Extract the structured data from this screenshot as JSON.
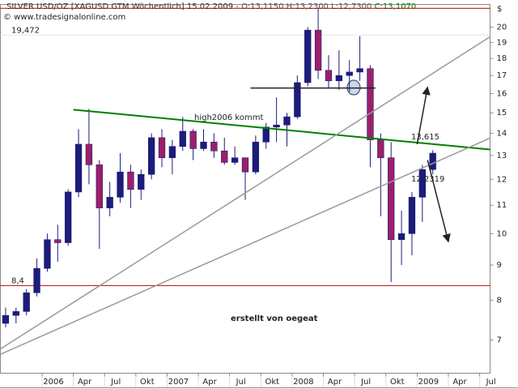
{
  "chart_data": {
    "type": "candlestick",
    "header": [
      {
        "text": "SILVER USD/OZ [XAGUSD GTM  Wöchentlich] 15.02.2009 - ",
        "color": "#333333"
      },
      {
        "text": "O:13,1150 H:13,2300 L:12,7300 ",
        "color": "#555555"
      },
      {
        "text": "C:13,1070",
        "color": "#008000"
      }
    ],
    "copyright": "© www.tradesignalonline.com",
    "y_unit": "$",
    "log_y": true,
    "up_color": "#1c1c7a",
    "down_color": "#9c1f6a",
    "x": [
      "2005-09",
      "2005-10",
      "2005-11",
      "2005-12",
      "2006-01",
      "2006-02",
      "2006-03",
      "2006-04",
      "2006-05",
      "2006-06",
      "2006-07",
      "2006-08",
      "2006-09",
      "2006-10",
      "2006-11",
      "2006-12",
      "2007-01",
      "2007-02",
      "2007-03",
      "2007-04",
      "2007-05",
      "2007-06",
      "2007-07",
      "2007-08",
      "2007-09",
      "2007-10",
      "2007-11",
      "2007-12",
      "2008-01",
      "2008-02",
      "2008-03",
      "2008-04",
      "2008-05",
      "2008-06",
      "2008-07",
      "2008-08",
      "2008-09",
      "2008-10",
      "2008-11",
      "2008-12",
      "2009-01",
      "2009-02"
    ],
    "open": [
      7.4,
      7.6,
      7.7,
      8.2,
      8.9,
      9.8,
      9.7,
      11.5,
      13.5,
      12.6,
      10.9,
      11.3,
      12.3,
      11.6,
      12.2,
      13.8,
      12.9,
      13.4,
      14.1,
      13.3,
      13.6,
      13.2,
      12.7,
      12.9,
      12.3,
      13.6,
      14.3,
      14.4,
      14.8,
      16.6,
      19.8,
      17.3,
      16.7,
      17.0,
      17.2,
      17.4,
      13.7,
      12.9,
      9.8,
      10.0,
      11.3,
      12.4
    ],
    "high": [
      7.8,
      7.8,
      8.3,
      9.2,
      10.0,
      10.3,
      11.6,
      14.2,
      15.2,
      12.8,
      11.9,
      13.1,
      12.6,
      12.4,
      14.0,
      14.2,
      13.7,
      14.8,
      14.2,
      14.2,
      14.0,
      13.8,
      13.4,
      12.9,
      13.9,
      14.5,
      15.8,
      15.0,
      17.0,
      20.0,
      21.3,
      18.2,
      18.5,
      17.9,
      19.4,
      17.6,
      14.0,
      13.6,
      10.8,
      11.5,
      12.6,
      13.23
    ],
    "low": [
      7.3,
      7.4,
      7.6,
      8.1,
      8.8,
      9.1,
      9.6,
      11.3,
      11.8,
      9.5,
      10.6,
      11.1,
      10.9,
      11.2,
      12.0,
      12.5,
      12.2,
      13.2,
      12.8,
      13.2,
      12.9,
      12.6,
      12.6,
      11.2,
      12.2,
      13.3,
      13.6,
      13.4,
      14.7,
      16.4,
      16.8,
      16.3,
      16.2,
      16.1,
      16.7,
      12.5,
      10.6,
      8.5,
      9.0,
      9.3,
      10.4,
      12.2
    ],
    "close": [
      7.6,
      7.7,
      8.2,
      8.9,
      9.8,
      9.7,
      11.5,
      13.5,
      12.6,
      10.9,
      11.3,
      12.3,
      11.6,
      12.2,
      13.8,
      12.9,
      13.4,
      14.1,
      13.3,
      13.6,
      13.2,
      12.7,
      12.9,
      12.3,
      13.6,
      14.3,
      14.4,
      14.8,
      16.6,
      19.8,
      17.3,
      16.7,
      17.0,
      17.2,
      17.4,
      13.7,
      12.9,
      9.8,
      10.0,
      11.3,
      12.4,
      13.1
    ],
    "xlim": [
      "2005-09",
      "2009-08"
    ],
    "xticks": [
      {
        "value": "2006-01",
        "label": "2006"
      },
      {
        "value": "2006-04",
        "label": "Apr"
      },
      {
        "value": "2006-07",
        "label": "Jul"
      },
      {
        "value": "2006-10",
        "label": "Okt"
      },
      {
        "value": "2007-01",
        "label": "2007"
      },
      {
        "value": "2007-04",
        "label": "Apr"
      },
      {
        "value": "2007-07",
        "label": "Jul"
      },
      {
        "value": "2007-10",
        "label": "Okt"
      },
      {
        "value": "2008-01",
        "label": "2008"
      },
      {
        "value": "2008-04",
        "label": "Apr"
      },
      {
        "value": "2008-07",
        "label": "Jul"
      },
      {
        "value": "2008-10",
        "label": "Okt"
      },
      {
        "value": "2009-01",
        "label": "2009"
      },
      {
        "value": "2009-04",
        "label": "Apr"
      },
      {
        "value": "2009-07",
        "label": "Jul"
      }
    ],
    "ylim": [
      6.26,
      21.58
    ],
    "yticks": [
      7,
      8,
      9,
      10,
      11,
      12,
      13,
      14,
      15,
      16,
      17,
      18,
      19,
      20
    ],
    "hlines": [
      {
        "value": 8.4,
        "label": "8,4",
        "color": "#c00000"
      },
      {
        "value": 19.472,
        "label": "19,472",
        "color": "#e6e6e6"
      },
      {
        "value": 21.3,
        "color": "#c00000"
      }
    ],
    "lines": [
      {
        "color": "#008000",
        "x": [
          "2006-04",
          "2009-08"
        ],
        "y": [
          15.16,
          13.26
        ]
      },
      {
        "color": "#999999",
        "x": [
          "2005-09",
          "2009-08"
        ],
        "y": [
          6.79,
          19.36
        ]
      },
      {
        "color": "#999999",
        "x": [
          "2005-09",
          "2009-08"
        ],
        "y": [
          6.67,
          13.78
        ]
      },
      {
        "color": "#222222",
        "x": [
          "2007-09",
          "2008-09"
        ],
        "y": [
          16.3,
          16.3
        ]
      },
      {
        "color": "#222222",
        "x": [
          "2009-01",
          "2009-02"
        ],
        "y": [
          13.5,
          16.35
        ],
        "arrow": true
      },
      {
        "color": "#222222",
        "x": [
          "2009-02",
          "2009-04"
        ],
        "y": [
          12.8,
          9.73
        ],
        "arrow": true
      }
    ],
    "annotations": [
      {
        "text": "high2006 kommt",
        "color": "#2e8b2e"
      },
      {
        "text": "13,615",
        "color": "#2e8b2e"
      },
      {
        "text": "12,2319",
        "color": "#aaaaaa"
      },
      {
        "text": "erstellt von oegeat",
        "color": "#000080"
      }
    ]
  }
}
